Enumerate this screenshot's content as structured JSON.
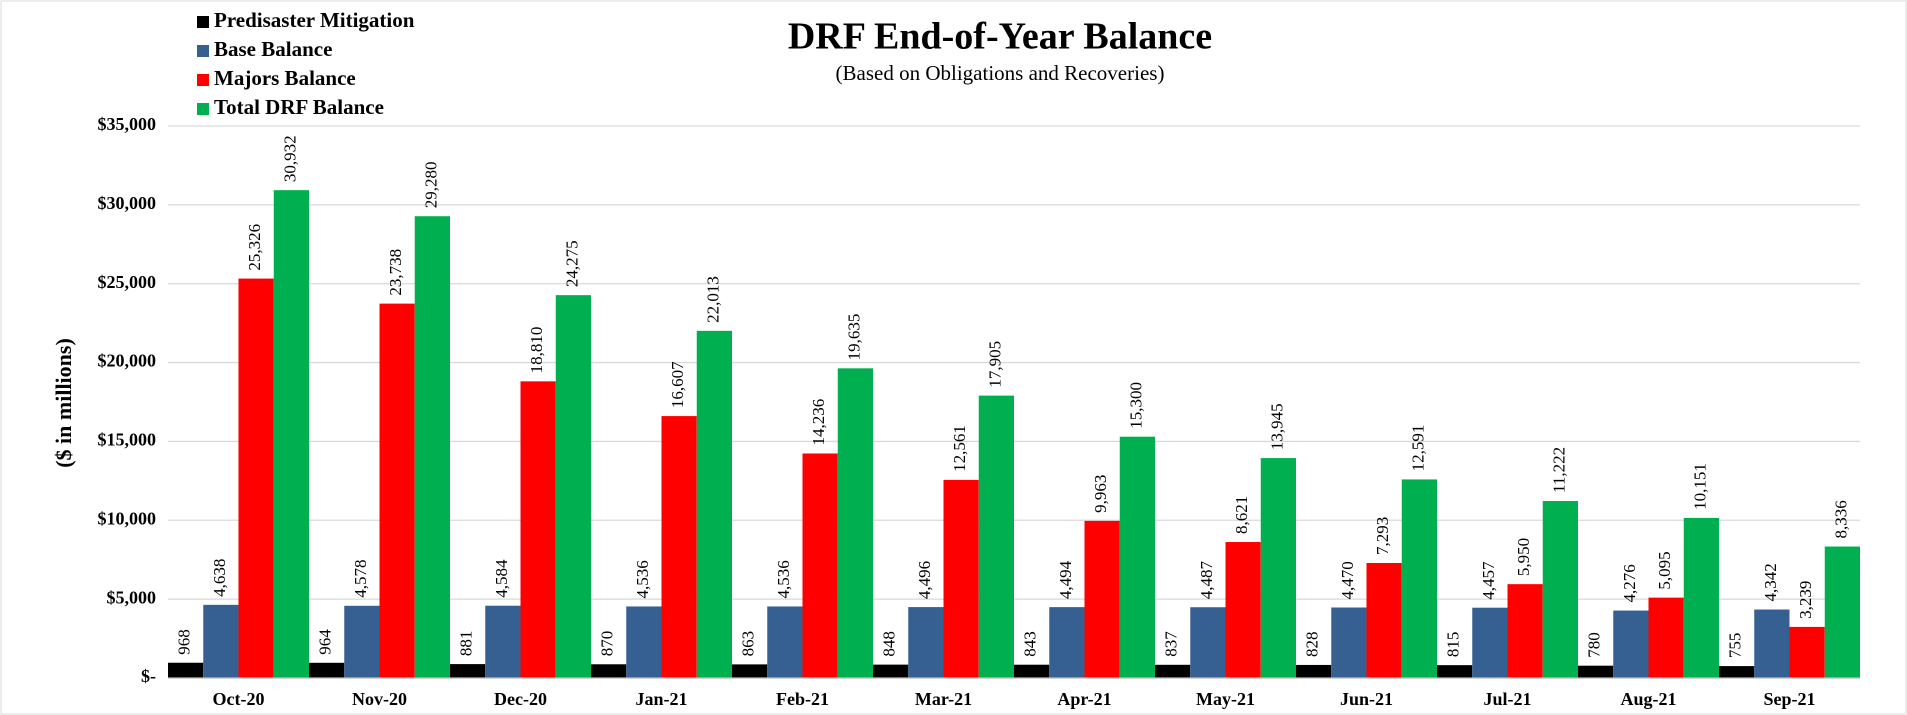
{
  "chart_data": {
    "type": "bar",
    "title": "DRF End-of-Year Balance",
    "subtitle": "(Based on Obligations and Recoveries)",
    "y_label": "($ in millions)",
    "categories": [
      "Oct-20",
      "Nov-20",
      "Dec-20",
      "Jan-21",
      "Feb-21",
      "Mar-21",
      "Apr-21",
      "May-21",
      "Jun-21",
      "Jul-21",
      "Aug-21",
      "Sep-21"
    ],
    "series": [
      {
        "name": "Predisaster Mitigation",
        "color": "#000000",
        "values": [
          968,
          964,
          881,
          870,
          863,
          848,
          843,
          837,
          828,
          815,
          780,
          755
        ],
        "value_labels": [
          "968",
          "964",
          "881",
          "870",
          "863",
          "848",
          "843",
          "837",
          "828",
          "815",
          "780",
          "755"
        ]
      },
      {
        "name": "Base Balance",
        "color": "#376092",
        "values": [
          4638,
          4578,
          4584,
          4536,
          4536,
          4496,
          4494,
          4487,
          4470,
          4457,
          4276,
          4342
        ],
        "value_labels": [
          "4,638",
          "4,578",
          "4,584",
          "4,536",
          "4,536",
          "4,496",
          "4,494",
          "4,487",
          "4,470",
          "4,457",
          "4,276",
          "4,342"
        ]
      },
      {
        "name": "Majors Balance",
        "color": "#ff0000",
        "values": [
          25326,
          23738,
          18810,
          16607,
          14236,
          12561,
          9963,
          8621,
          7293,
          5950,
          5095,
          3239
        ],
        "value_labels": [
          "25,326",
          "23,738",
          "18,810",
          "16,607",
          "14,236",
          "12,561",
          "9,963",
          "8,621",
          "7,293",
          "5,950",
          "5,095",
          "3,239"
        ]
      },
      {
        "name": "Total DRF Balance",
        "color": "#00b050",
        "values": [
          30932,
          29280,
          24275,
          22013,
          19635,
          17905,
          15300,
          13945,
          12591,
          11222,
          10151,
          8336
        ],
        "value_labels": [
          "30,932",
          "29,280",
          "24,275",
          "22,013",
          "19,635",
          "17,905",
          "15,300",
          "13,945",
          "12,591",
          "11,222",
          "10,151",
          "8,336"
        ]
      }
    ],
    "ylim": [
      0,
      35000
    ],
    "yticks": [
      {
        "value": 0,
        "label": "$-"
      },
      {
        "value": 5000,
        "label": "$5,000"
      },
      {
        "value": 10000,
        "label": "$10,000"
      },
      {
        "value": 15000,
        "label": "$15,000"
      },
      {
        "value": 20000,
        "label": "$20,000"
      },
      {
        "value": 25000,
        "label": "$25,000"
      },
      {
        "value": 30000,
        "label": "$30,000"
      },
      {
        "value": 35000,
        "label": "$35,000"
      }
    ],
    "grid": true,
    "legend": "top-left"
  }
}
